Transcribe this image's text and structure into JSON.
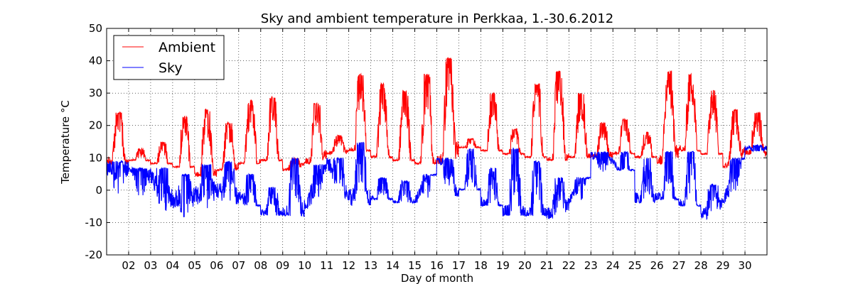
{
  "chart_data": {
    "type": "line",
    "title": "Sky and ambient temperature in Perkkaa, 1.-30.6.2012",
    "xlabel": "Day of month",
    "ylabel": "Temperature °C",
    "xlim": [
      1.0,
      31.0
    ],
    "ylim": [
      -20,
      50
    ],
    "yticks": [
      -20,
      -10,
      0,
      10,
      20,
      30,
      40,
      50
    ],
    "xticks": [
      2,
      3,
      4,
      5,
      6,
      7,
      8,
      9,
      10,
      11,
      12,
      13,
      14,
      15,
      16,
      17,
      18,
      19,
      20,
      21,
      22,
      23,
      24,
      25,
      26,
      27,
      28,
      29,
      30
    ],
    "xtick_labels": [
      "02",
      "03",
      "04",
      "05",
      "06",
      "07",
      "08",
      "09",
      "10",
      "11",
      "12",
      "13",
      "14",
      "15",
      "16",
      "17",
      "18",
      "19",
      "20",
      "21",
      "22",
      "23",
      "24",
      "25",
      "26",
      "27",
      "28",
      "29",
      "30"
    ],
    "grid": true,
    "legend_position": "top-left",
    "colors": {
      "Ambient": "#ff0000",
      "Sky": "#0000ff"
    },
    "series": [
      {
        "name": "Ambient",
        "daily_min": [
          8,
          9,
          8,
          7,
          4,
          6,
          8,
          9,
          6,
          8,
          11,
          12,
          10,
          9,
          8,
          8,
          13,
          12,
          11,
          10,
          9,
          10,
          10,
          11,
          10,
          8,
          12,
          11,
          7,
          9
        ],
        "daily_max": [
          24,
          13,
          15,
          23,
          25,
          21,
          28,
          29,
          10,
          27,
          17,
          36,
          33,
          31,
          36,
          41,
          16,
          30,
          19,
          33,
          37,
          30,
          21,
          22,
          18,
          37,
          36,
          31,
          25,
          24
        ],
        "night_min": [
          9,
          8,
          7,
          6,
          4,
          5,
          7,
          8,
          6,
          8,
          11,
          12,
          9,
          8,
          7,
          8,
          13,
          11,
          10,
          9,
          8,
          9,
          10,
          11,
          10,
          8,
          12,
          10,
          6,
          12
        ]
      },
      {
        "name": "Sky",
        "daily_min": [
          -10,
          -6,
          -13,
          -14,
          -12,
          -8,
          -5,
          -8,
          -8,
          -6,
          -3,
          -5,
          -3,
          -4,
          -4,
          -2,
          0,
          -5,
          -8,
          -8,
          -9,
          -4,
          5,
          6,
          -4,
          -3,
          -5,
          -9,
          -4,
          12
        ],
        "daily_max": [
          9,
          7,
          7,
          5,
          8,
          9,
          5,
          1,
          10,
          8,
          10,
          15,
          4,
          3,
          5,
          10,
          13,
          7,
          13,
          9,
          4,
          4,
          12,
          12,
          10,
          12,
          12,
          2,
          10,
          14
        ],
        "night_min": [
          7,
          7,
          4,
          -3,
          -2,
          0,
          -2,
          -7,
          -8,
          -6,
          9,
          -2,
          -3,
          -4,
          -4,
          12,
          -2,
          -4,
          -8,
          -8,
          -8,
          -4,
          11,
          9,
          -3,
          -3,
          -5,
          -8,
          -4,
          13
        ]
      }
    ]
  }
}
